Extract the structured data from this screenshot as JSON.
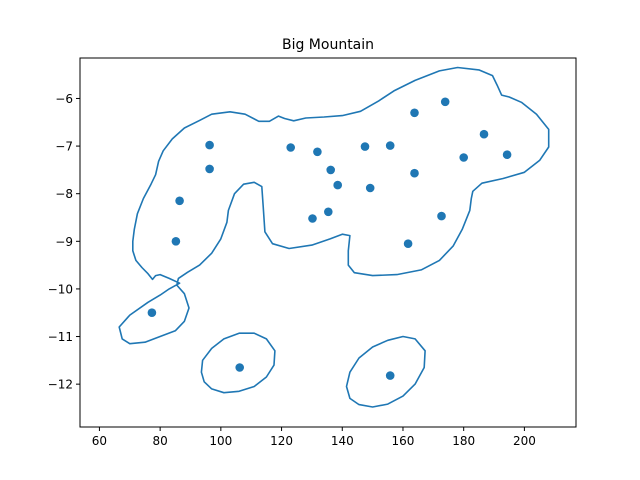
{
  "chart_data": {
    "type": "scatter",
    "title": "Big Mountain",
    "xlabel": "",
    "ylabel": "",
    "xlim": [
      53.6,
      217.0
    ],
    "ylim": [
      -12.9,
      -5.15
    ],
    "xticks": [
      60,
      80,
      100,
      120,
      140,
      160,
      180,
      200
    ],
    "yticks": [
      -12,
      -11,
      -10,
      -9,
      -8,
      -7,
      -6
    ],
    "grid": false,
    "marker_color": "#1f77b4",
    "contour_color": "#1f77b4",
    "points": [
      {
        "x": 77.3,
        "y": -10.5
      },
      {
        "x": 85.2,
        "y": -9.0
      },
      {
        "x": 86.4,
        "y": -8.15
      },
      {
        "x": 96.3,
        "y": -6.98
      },
      {
        "x": 96.3,
        "y": -7.48
      },
      {
        "x": 106.2,
        "y": -11.65
      },
      {
        "x": 123.0,
        "y": -7.03
      },
      {
        "x": 130.2,
        "y": -8.52
      },
      {
        "x": 131.8,
        "y": -7.12
      },
      {
        "x": 135.4,
        "y": -8.38
      },
      {
        "x": 136.2,
        "y": -7.5
      },
      {
        "x": 138.5,
        "y": -7.82
      },
      {
        "x": 147.5,
        "y": -7.01
      },
      {
        "x": 149.2,
        "y": -7.88
      },
      {
        "x": 155.8,
        "y": -6.99
      },
      {
        "x": 155.8,
        "y": -11.82
      },
      {
        "x": 161.7,
        "y": -9.05
      },
      {
        "x": 163.8,
        "y": -6.3
      },
      {
        "x": 163.8,
        "y": -7.57
      },
      {
        "x": 172.7,
        "y": -8.47
      },
      {
        "x": 173.9,
        "y": -6.07
      },
      {
        "x": 180.0,
        "y": -7.24
      },
      {
        "x": 186.7,
        "y": -6.75
      },
      {
        "x": 194.3,
        "y": -7.18
      }
    ],
    "contours": [
      {
        "closed": true,
        "points": [
          [
            86.4,
            -9.88
          ],
          [
            83.0,
            -10.0
          ],
          [
            80.0,
            -10.13
          ],
          [
            76.0,
            -10.28
          ],
          [
            70.0,
            -10.55
          ],
          [
            66.5,
            -10.8
          ],
          [
            67.5,
            -11.05
          ],
          [
            70.0,
            -11.15
          ],
          [
            75.0,
            -11.12
          ],
          [
            80.0,
            -11.0
          ],
          [
            85.0,
            -10.88
          ],
          [
            88.0,
            -10.68
          ],
          [
            89.5,
            -10.4
          ],
          [
            88.0,
            -10.1
          ],
          [
            85.5,
            -9.92
          ],
          [
            86.0,
            -9.78
          ],
          [
            89.0,
            -9.65
          ],
          [
            93.0,
            -9.5
          ],
          [
            97.0,
            -9.25
          ],
          [
            100.0,
            -8.95
          ],
          [
            102.0,
            -8.6
          ],
          [
            102.5,
            -8.35
          ],
          [
            104.5,
            -8.0
          ],
          [
            107.5,
            -7.8
          ],
          [
            111.0,
            -7.76
          ],
          [
            113.5,
            -7.85
          ],
          [
            114.0,
            -8.3
          ],
          [
            114.5,
            -8.8
          ],
          [
            117.0,
            -9.05
          ],
          [
            122.5,
            -9.15
          ],
          [
            130.0,
            -9.08
          ],
          [
            136.0,
            -8.95
          ],
          [
            140.0,
            -8.85
          ],
          [
            142.5,
            -8.88
          ],
          [
            142.0,
            -9.2
          ],
          [
            142.0,
            -9.5
          ],
          [
            144.0,
            -9.66
          ],
          [
            150.0,
            -9.72
          ],
          [
            158.0,
            -9.7
          ],
          [
            166.0,
            -9.6
          ],
          [
            172.0,
            -9.4
          ],
          [
            176.5,
            -9.1
          ],
          [
            179.5,
            -8.75
          ],
          [
            182.0,
            -8.35
          ],
          [
            182.5,
            -8.1
          ],
          [
            183.0,
            -7.95
          ],
          [
            186.0,
            -7.78
          ],
          [
            193.0,
            -7.68
          ],
          [
            200.0,
            -7.55
          ],
          [
            205.0,
            -7.3
          ],
          [
            208.0,
            -7.02
          ],
          [
            208.0,
            -6.65
          ],
          [
            204.0,
            -6.33
          ],
          [
            199.0,
            -6.08
          ],
          [
            195.0,
            -5.97
          ],
          [
            192.5,
            -5.93
          ],
          [
            191.0,
            -5.72
          ],
          [
            189.5,
            -5.52
          ],
          [
            185.0,
            -5.4
          ],
          [
            178.0,
            -5.35
          ],
          [
            172.0,
            -5.42
          ],
          [
            164.0,
            -5.62
          ],
          [
            157.0,
            -5.84
          ],
          [
            152.0,
            -6.05
          ],
          [
            146.0,
            -6.27
          ],
          [
            140.0,
            -6.36
          ],
          [
            134.0,
            -6.39
          ],
          [
            128.0,
            -6.41
          ],
          [
            124.0,
            -6.47
          ],
          [
            121.0,
            -6.42
          ],
          [
            119.0,
            -6.37
          ],
          [
            116.0,
            -6.48
          ],
          [
            112.5,
            -6.48
          ],
          [
            108.0,
            -6.33
          ],
          [
            103.0,
            -6.28
          ],
          [
            97.0,
            -6.33
          ],
          [
            93.0,
            -6.46
          ],
          [
            88.0,
            -6.62
          ],
          [
            84.0,
            -6.85
          ],
          [
            81.0,
            -7.1
          ],
          [
            79.5,
            -7.32
          ],
          [
            78.5,
            -7.6
          ],
          [
            77.0,
            -7.8
          ],
          [
            74.5,
            -8.1
          ],
          [
            72.5,
            -8.42
          ],
          [
            71.5,
            -8.75
          ],
          [
            71.0,
            -9.0
          ],
          [
            71.0,
            -9.2
          ],
          [
            72.0,
            -9.4
          ],
          [
            74.0,
            -9.55
          ],
          [
            76.0,
            -9.68
          ],
          [
            77.5,
            -9.8
          ],
          [
            78.5,
            -9.72
          ],
          [
            80.0,
            -9.7
          ],
          [
            83.0,
            -9.78
          ]
        ]
      },
      {
        "closed": true,
        "points": [
          [
            93.6,
            -11.75
          ],
          [
            94.0,
            -11.5
          ],
          [
            97.0,
            -11.25
          ],
          [
            101.0,
            -11.05
          ],
          [
            106.0,
            -10.93
          ],
          [
            111.0,
            -10.93
          ],
          [
            115.0,
            -11.05
          ],
          [
            117.8,
            -11.3
          ],
          [
            117.5,
            -11.6
          ],
          [
            115.0,
            -11.85
          ],
          [
            111.0,
            -12.05
          ],
          [
            106.0,
            -12.15
          ],
          [
            101.0,
            -12.18
          ],
          [
            97.0,
            -12.1
          ],
          [
            94.5,
            -11.95
          ]
        ]
      },
      {
        "closed": true,
        "points": [
          [
            141.4,
            -12.05
          ],
          [
            142.5,
            -11.75
          ],
          [
            145.5,
            -11.45
          ],
          [
            150.0,
            -11.22
          ],
          [
            155.0,
            -11.08
          ],
          [
            160.0,
            -11.0
          ],
          [
            164.0,
            -11.05
          ],
          [
            167.3,
            -11.3
          ],
          [
            167.0,
            -11.65
          ],
          [
            164.0,
            -12.0
          ],
          [
            160.0,
            -12.25
          ],
          [
            155.0,
            -12.42
          ],
          [
            150.0,
            -12.48
          ],
          [
            145.5,
            -12.43
          ],
          [
            142.5,
            -12.3
          ]
        ]
      }
    ]
  }
}
